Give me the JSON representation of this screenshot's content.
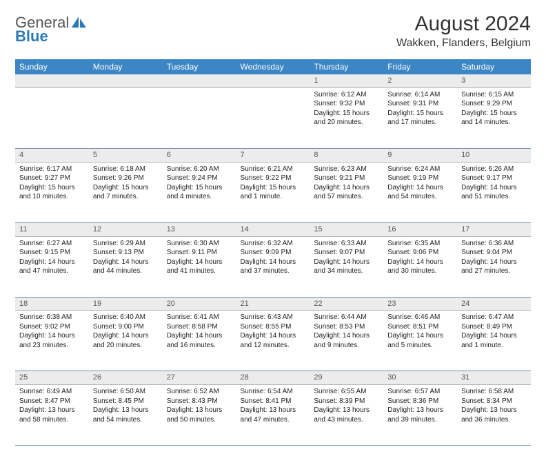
{
  "brand": {
    "part1": "General",
    "part2": "Blue"
  },
  "title": "August 2024",
  "location": "Wakken, Flanders, Belgium",
  "colors": {
    "header_bg": "#3d86c6",
    "header_text": "#ffffff",
    "daynum_bg": "#ececec",
    "row_border": "#6b8fb0",
    "brand_accent": "#2a7ab9"
  },
  "typography": {
    "title_fontsize": 30,
    "location_fontsize": 16,
    "weekday_fontsize": 12,
    "body_fontsize": 10
  },
  "weekdays": [
    "Sunday",
    "Monday",
    "Tuesday",
    "Wednesday",
    "Thursday",
    "Friday",
    "Saturday"
  ],
  "weeks": [
    {
      "nums": [
        "",
        "",
        "",
        "",
        "1",
        "2",
        "3"
      ],
      "cells": [
        null,
        null,
        null,
        null,
        {
          "sunrise": "Sunrise: 6:12 AM",
          "sunset": "Sunset: 9:32 PM",
          "d1": "Daylight: 15 hours",
          "d2": "and 20 minutes."
        },
        {
          "sunrise": "Sunrise: 6:14 AM",
          "sunset": "Sunset: 9:31 PM",
          "d1": "Daylight: 15 hours",
          "d2": "and 17 minutes."
        },
        {
          "sunrise": "Sunrise: 6:15 AM",
          "sunset": "Sunset: 9:29 PM",
          "d1": "Daylight: 15 hours",
          "d2": "and 14 minutes."
        }
      ]
    },
    {
      "nums": [
        "4",
        "5",
        "6",
        "7",
        "8",
        "9",
        "10"
      ],
      "cells": [
        {
          "sunrise": "Sunrise: 6:17 AM",
          "sunset": "Sunset: 9:27 PM",
          "d1": "Daylight: 15 hours",
          "d2": "and 10 minutes."
        },
        {
          "sunrise": "Sunrise: 6:18 AM",
          "sunset": "Sunset: 9:26 PM",
          "d1": "Daylight: 15 hours",
          "d2": "and 7 minutes."
        },
        {
          "sunrise": "Sunrise: 6:20 AM",
          "sunset": "Sunset: 9:24 PM",
          "d1": "Daylight: 15 hours",
          "d2": "and 4 minutes."
        },
        {
          "sunrise": "Sunrise: 6:21 AM",
          "sunset": "Sunset: 9:22 PM",
          "d1": "Daylight: 15 hours",
          "d2": "and 1 minute."
        },
        {
          "sunrise": "Sunrise: 6:23 AM",
          "sunset": "Sunset: 9:21 PM",
          "d1": "Daylight: 14 hours",
          "d2": "and 57 minutes."
        },
        {
          "sunrise": "Sunrise: 6:24 AM",
          "sunset": "Sunset: 9:19 PM",
          "d1": "Daylight: 14 hours",
          "d2": "and 54 minutes."
        },
        {
          "sunrise": "Sunrise: 6:26 AM",
          "sunset": "Sunset: 9:17 PM",
          "d1": "Daylight: 14 hours",
          "d2": "and 51 minutes."
        }
      ]
    },
    {
      "nums": [
        "11",
        "12",
        "13",
        "14",
        "15",
        "16",
        "17"
      ],
      "cells": [
        {
          "sunrise": "Sunrise: 6:27 AM",
          "sunset": "Sunset: 9:15 PM",
          "d1": "Daylight: 14 hours",
          "d2": "and 47 minutes."
        },
        {
          "sunrise": "Sunrise: 6:29 AM",
          "sunset": "Sunset: 9:13 PM",
          "d1": "Daylight: 14 hours",
          "d2": "and 44 minutes."
        },
        {
          "sunrise": "Sunrise: 6:30 AM",
          "sunset": "Sunset: 9:11 PM",
          "d1": "Daylight: 14 hours",
          "d2": "and 41 minutes."
        },
        {
          "sunrise": "Sunrise: 6:32 AM",
          "sunset": "Sunset: 9:09 PM",
          "d1": "Daylight: 14 hours",
          "d2": "and 37 minutes."
        },
        {
          "sunrise": "Sunrise: 6:33 AM",
          "sunset": "Sunset: 9:07 PM",
          "d1": "Daylight: 14 hours",
          "d2": "and 34 minutes."
        },
        {
          "sunrise": "Sunrise: 6:35 AM",
          "sunset": "Sunset: 9:06 PM",
          "d1": "Daylight: 14 hours",
          "d2": "and 30 minutes."
        },
        {
          "sunrise": "Sunrise: 6:36 AM",
          "sunset": "Sunset: 9:04 PM",
          "d1": "Daylight: 14 hours",
          "d2": "and 27 minutes."
        }
      ]
    },
    {
      "nums": [
        "18",
        "19",
        "20",
        "21",
        "22",
        "23",
        "24"
      ],
      "cells": [
        {
          "sunrise": "Sunrise: 6:38 AM",
          "sunset": "Sunset: 9:02 PM",
          "d1": "Daylight: 14 hours",
          "d2": "and 23 minutes."
        },
        {
          "sunrise": "Sunrise: 6:40 AM",
          "sunset": "Sunset: 9:00 PM",
          "d1": "Daylight: 14 hours",
          "d2": "and 20 minutes."
        },
        {
          "sunrise": "Sunrise: 6:41 AM",
          "sunset": "Sunset: 8:58 PM",
          "d1": "Daylight: 14 hours",
          "d2": "and 16 minutes."
        },
        {
          "sunrise": "Sunrise: 6:43 AM",
          "sunset": "Sunset: 8:55 PM",
          "d1": "Daylight: 14 hours",
          "d2": "and 12 minutes."
        },
        {
          "sunrise": "Sunrise: 6:44 AM",
          "sunset": "Sunset: 8:53 PM",
          "d1": "Daylight: 14 hours",
          "d2": "and 9 minutes."
        },
        {
          "sunrise": "Sunrise: 6:46 AM",
          "sunset": "Sunset: 8:51 PM",
          "d1": "Daylight: 14 hours",
          "d2": "and 5 minutes."
        },
        {
          "sunrise": "Sunrise: 6:47 AM",
          "sunset": "Sunset: 8:49 PM",
          "d1": "Daylight: 14 hours",
          "d2": "and 1 minute."
        }
      ]
    },
    {
      "nums": [
        "25",
        "26",
        "27",
        "28",
        "29",
        "30",
        "31"
      ],
      "cells": [
        {
          "sunrise": "Sunrise: 6:49 AM",
          "sunset": "Sunset: 8:47 PM",
          "d1": "Daylight: 13 hours",
          "d2": "and 58 minutes."
        },
        {
          "sunrise": "Sunrise: 6:50 AM",
          "sunset": "Sunset: 8:45 PM",
          "d1": "Daylight: 13 hours",
          "d2": "and 54 minutes."
        },
        {
          "sunrise": "Sunrise: 6:52 AM",
          "sunset": "Sunset: 8:43 PM",
          "d1": "Daylight: 13 hours",
          "d2": "and 50 minutes."
        },
        {
          "sunrise": "Sunrise: 6:54 AM",
          "sunset": "Sunset: 8:41 PM",
          "d1": "Daylight: 13 hours",
          "d2": "and 47 minutes."
        },
        {
          "sunrise": "Sunrise: 6:55 AM",
          "sunset": "Sunset: 8:39 PM",
          "d1": "Daylight: 13 hours",
          "d2": "and 43 minutes."
        },
        {
          "sunrise": "Sunrise: 6:57 AM",
          "sunset": "Sunset: 8:36 PM",
          "d1": "Daylight: 13 hours",
          "d2": "and 39 minutes."
        },
        {
          "sunrise": "Sunrise: 6:58 AM",
          "sunset": "Sunset: 8:34 PM",
          "d1": "Daylight: 13 hours",
          "d2": "and 36 minutes."
        }
      ]
    }
  ]
}
